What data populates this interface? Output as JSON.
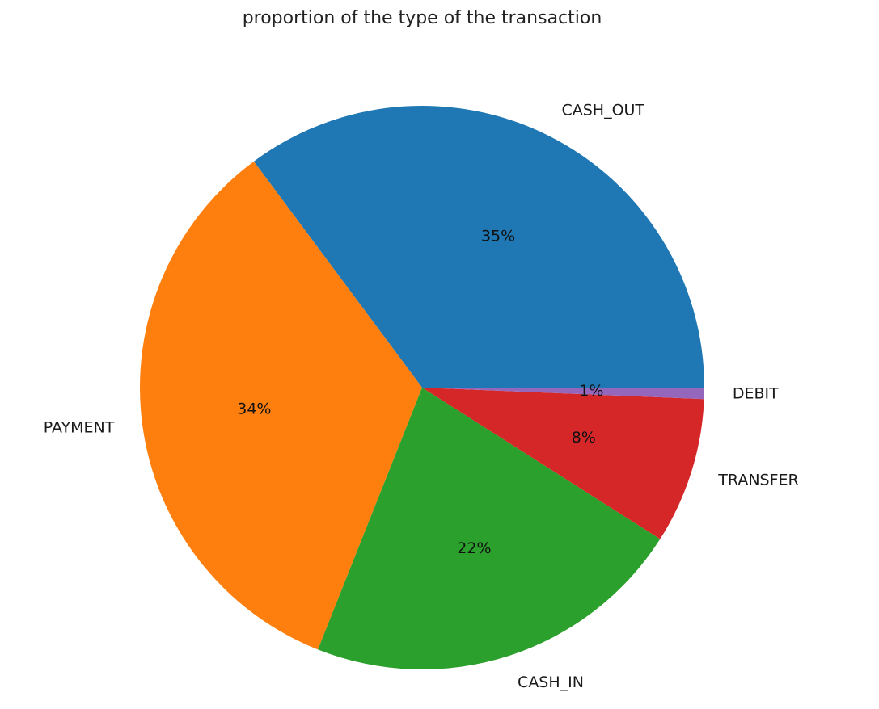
{
  "chart_data": {
    "type": "pie",
    "title": "proportion of the type of the transaction",
    "start_angle_deg": 0,
    "direction": "counterclockwise",
    "slices": [
      {
        "label": "CASH_OUT",
        "value": 35.17,
        "pct_label": "35%",
        "color": "#1f77b4"
      },
      {
        "label": "PAYMENT",
        "value": 33.81,
        "pct_label": "34%",
        "color": "#ff7f0e"
      },
      {
        "label": "CASH_IN",
        "value": 21.99,
        "pct_label": "22%",
        "color": "#2ca02c"
      },
      {
        "label": "TRANSFER",
        "value": 8.38,
        "pct_label": "8%",
        "color": "#d62728"
      },
      {
        "label": "DEBIT",
        "value": 0.65,
        "pct_label": "1%",
        "color": "#9467bd"
      }
    ]
  }
}
